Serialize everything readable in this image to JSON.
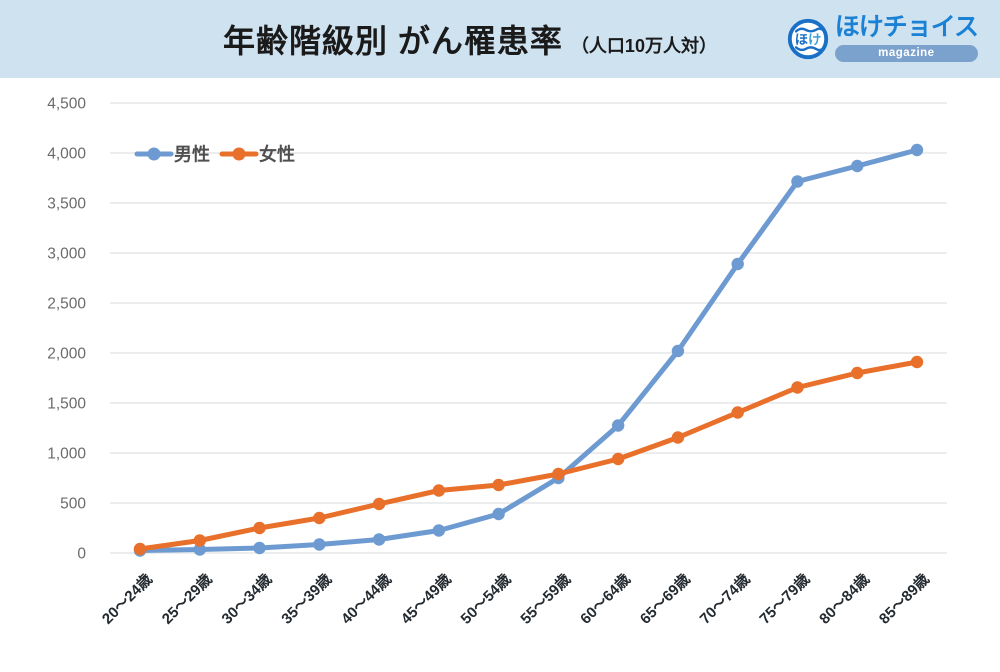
{
  "header": {
    "title": "年齢階級別 がん罹患率",
    "subtitle": "（人口10万人対）",
    "logo": {
      "icon_text_1": "ほ",
      "icon_text_2": "け",
      "brand": "ほけチョイス",
      "tagline": "magazine"
    }
  },
  "colors": {
    "header_bg": "#cfe2f0",
    "title_text": "#1a1a1a",
    "brand_blue": "#1b81d5",
    "logo_icon_blue": "#1a6fc6",
    "logo_icon_accent": "#3aa0d8",
    "magazine_pill_bg": "#7ba1cd",
    "male_series": "#6d9bd1",
    "female_series": "#e8702a",
    "gridline": "#e0e2e4",
    "y_tick_text": "#6b6b6b",
    "x_tick_text": "#232a30",
    "legend_text": "#4f4f4f"
  },
  "chart_data": {
    "type": "line",
    "title": "年齢階級別 がん罹患率（人口10万人対）",
    "categories": [
      "20〜24歳",
      "25〜29歳",
      "30〜34歳",
      "35〜39歳",
      "40〜44歳",
      "45〜49歳",
      "50〜54歳",
      "55〜59歳",
      "60〜64歳",
      "65〜69歳",
      "70〜74歳",
      "75〜79歳",
      "80〜84歳",
      "85〜89歳"
    ],
    "series": [
      {
        "name": "男性",
        "color": "#6d9bd1",
        "values": [
          25,
          35,
          50,
          85,
          135,
          225,
          390,
          750,
          1275,
          2020,
          2890,
          3715,
          3870,
          4030
        ]
      },
      {
        "name": "女性",
        "color": "#e8702a",
        "values": [
          40,
          125,
          250,
          350,
          490,
          625,
          680,
          790,
          940,
          1155,
          1405,
          1655,
          1800,
          1910
        ]
      }
    ],
    "xlabel": "",
    "ylabel": "",
    "ylim": [
      0,
      4500
    ],
    "ytick_step": 500,
    "ytick_labels": [
      "0",
      "500",
      "1,000",
      "1,500",
      "2,000",
      "2,500",
      "3,000",
      "3,500",
      "4,000",
      "4,500"
    ],
    "grid": true,
    "legend_position": "inside-top-left",
    "x_label_rotation": -45
  }
}
